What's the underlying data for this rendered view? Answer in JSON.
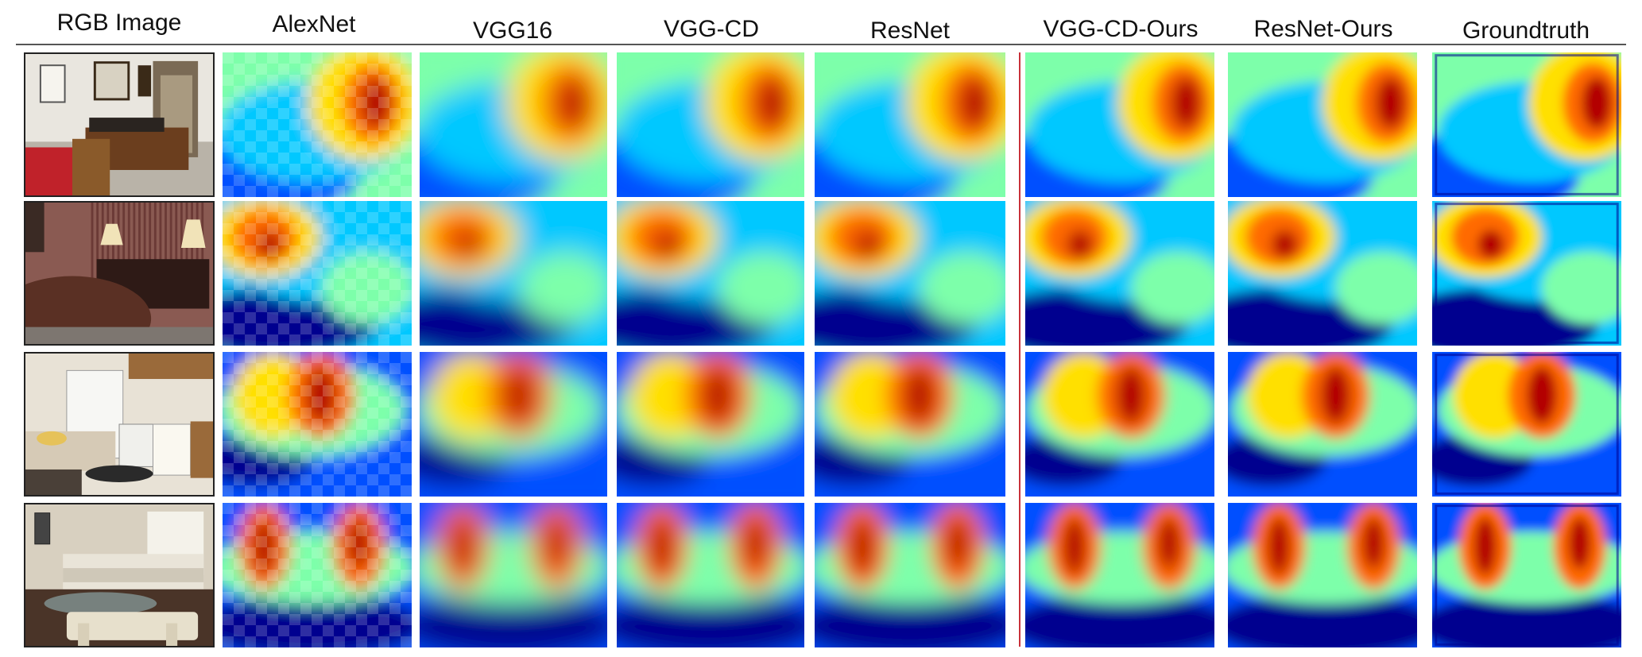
{
  "figure": {
    "columns": [
      {
        "id": "rgb",
        "label": "RGB  Image"
      },
      {
        "id": "alexnet",
        "label": "AlexNet"
      },
      {
        "id": "vgg16",
        "label": "VGG16"
      },
      {
        "id": "vggcd",
        "label": "VGG-CD"
      },
      {
        "id": "resnet",
        "label": "ResNet"
      },
      {
        "id": "vggcdours",
        "label": "VGG-CD-Ours"
      },
      {
        "id": "resnetours",
        "label": "ResNet-Ours"
      },
      {
        "id": "gt",
        "label": "Groundtruth"
      }
    ],
    "rows": [
      {
        "scene": "office"
      },
      {
        "scene": "bedroom"
      },
      {
        "scene": "kitchen"
      },
      {
        "scene": "living-room"
      }
    ],
    "colormap": [
      "#00008f",
      "#0050ff",
      "#00c8ff",
      "#7dffaa",
      "#ffe000",
      "#ff6a00",
      "#b30000"
    ],
    "separator_color": "#c8323a"
  }
}
